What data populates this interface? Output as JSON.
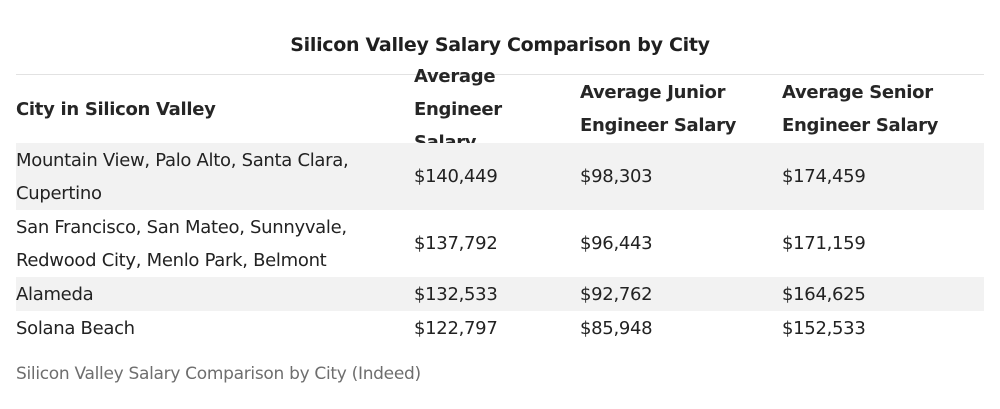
{
  "table": {
    "title": "Silicon Valley Salary Comparison by City",
    "headers": [
      "City in Silicon Valley",
      "Average Engineer\nSalary",
      "Average Junior\nEngineer Salary",
      "Average Senior\nEngineer Salary"
    ],
    "rows": [
      {
        "city": "Mountain View, Palo Alto, Santa Clara,\nCupertino",
        "average": "$140,449",
        "junior": "$98,303",
        "senior": "$174,459"
      },
      {
        "city": "San Francisco, San Mateo, Sunnyvale,\nRedwood City, Menlo Park, Belmont",
        "average": "$137,792",
        "junior": "$96,443",
        "senior": "$171,159"
      },
      {
        "city": "Alameda",
        "average": "$132,533",
        "junior": "$92,762",
        "senior": "$164,625"
      },
      {
        "city": "Solana Beach",
        "average": "$122,797",
        "junior": "$85,948",
        "senior": "$152,533"
      }
    ],
    "caption": "Silicon Valley Salary Comparison by City (Indeed)"
  }
}
